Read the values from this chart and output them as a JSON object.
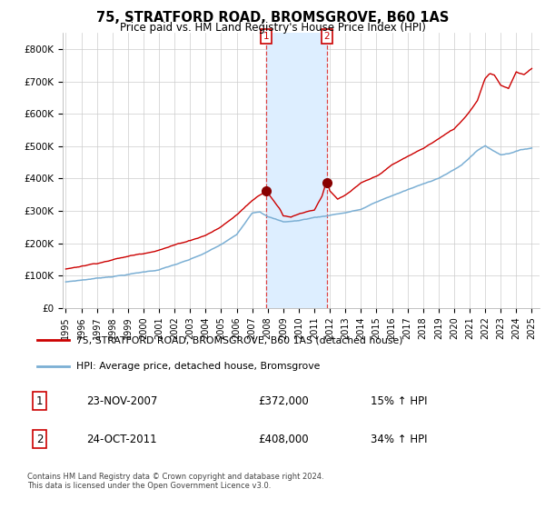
{
  "title": "75, STRATFORD ROAD, BROMSGROVE, B60 1AS",
  "subtitle": "Price paid vs. HM Land Registry's House Price Index (HPI)",
  "background_color": "#ffffff",
  "plot_bg_color": "#ffffff",
  "grid_color": "#cccccc",
  "ylim": [
    0,
    850000
  ],
  "yticks": [
    0,
    100000,
    200000,
    300000,
    400000,
    500000,
    600000,
    700000,
    800000
  ],
  "ytick_labels": [
    "£0",
    "£100K",
    "£200K",
    "£300K",
    "£400K",
    "£500K",
    "£600K",
    "£700K",
    "£800K"
  ],
  "xlim_start": 1994.8,
  "xlim_end": 2025.5,
  "transaction1_date": 2007.9,
  "transaction1_price": 372000,
  "transaction2_date": 2011.8,
  "transaction2_price": 408000,
  "line1_color": "#cc0000",
  "line2_color": "#7bafd4",
  "shade_color": "#ddeeff",
  "marker_box_color": "#cc0000",
  "legend_line1": "75, STRATFORD ROAD, BROMSGROVE, B60 1AS (detached house)",
  "legend_line2": "HPI: Average price, detached house, Bromsgrove",
  "table_row1_num": "1",
  "table_row1_date": "23-NOV-2007",
  "table_row1_price": "£372,000",
  "table_row1_hpi": "15% ↑ HPI",
  "table_row2_num": "2",
  "table_row2_date": "24-OCT-2011",
  "table_row2_price": "£408,000",
  "table_row2_hpi": "34% ↑ HPI",
  "footer": "Contains HM Land Registry data © Crown copyright and database right 2024.\nThis data is licensed under the Open Government Licence v3.0."
}
